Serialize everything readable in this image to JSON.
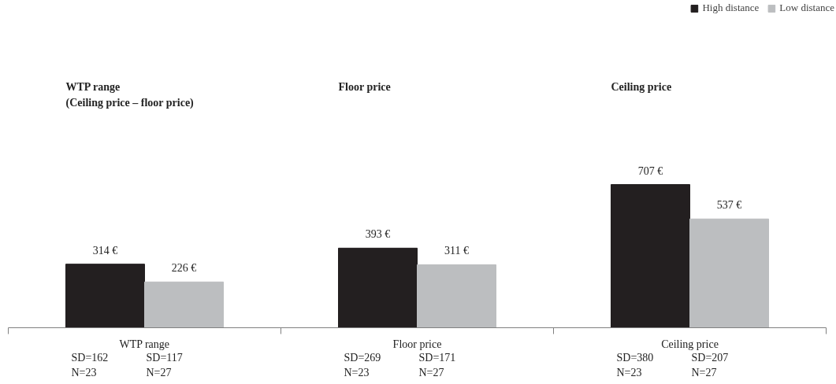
{
  "chart_data": {
    "type": "bar",
    "categories": [
      "WTP range",
      "Floor price",
      "Ceiling price"
    ],
    "series": [
      {
        "name": "High distance",
        "color": "#231f20",
        "values": [
          314,
          393,
          707
        ],
        "value_labels": [
          "314 €",
          "393 €",
          "707 €"
        ]
      },
      {
        "name": "Low distance",
        "color": "#bcbec0",
        "values": [
          226,
          311,
          537
        ],
        "value_labels": [
          "226 €",
          "311 €",
          "537 €"
        ]
      }
    ],
    "legend": "top right",
    "annotations": [
      "WTP range\n(Ceiling price – floor price)",
      "Floor price",
      "Ceiling price",
      "SD=162",
      "SD=117",
      "N=23",
      "N=27",
      "SD=269",
      "SD=171",
      "N=23",
      "N=27",
      "SD=380",
      "SD=207",
      "N=23",
      "N=27"
    ]
  }
}
